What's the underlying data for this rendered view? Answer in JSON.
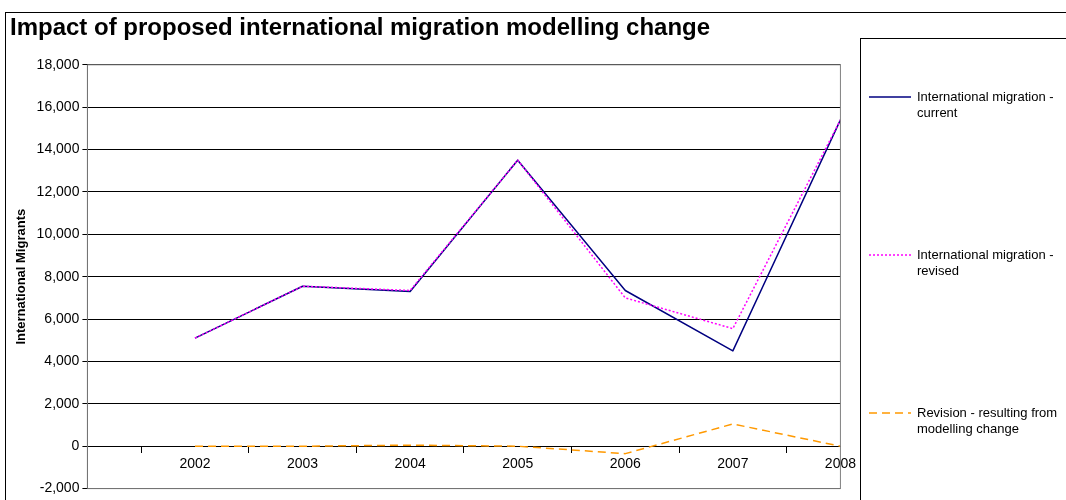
{
  "chart_data": {
    "type": "line",
    "title": "Impact of proposed international migration modelling change",
    "ylabel": "International Migrants",
    "categories": [
      null,
      "2002",
      "2003",
      "2004",
      "2005",
      "2006",
      "2007",
      "2008"
    ],
    "series": [
      {
        "name": "International migration - current",
        "color": "#000080",
        "line_style": "solid",
        "values": [
          null,
          5100,
          7550,
          7300,
          13500,
          7350,
          4500,
          15400
        ]
      },
      {
        "name": "International migration - revised",
        "color": "#ff00ff",
        "line_style": "dotted",
        "values": [
          null,
          5100,
          7550,
          7350,
          13500,
          7000,
          5550,
          15400
        ]
      },
      {
        "name": "Revision - resulting from modelling change",
        "color": "#ff9900",
        "line_style": "dashed",
        "values": [
          null,
          0,
          0,
          50,
          0,
          -350,
          1050,
          0
        ]
      }
    ],
    "ylim": [
      -2000,
      18000
    ],
    "yticks": [
      {
        "value": -2000,
        "label": "-2,000"
      },
      0,
      {
        "value": 2000,
        "label": "2,000"
      },
      {
        "value": 4000,
        "label": "4,000"
      },
      {
        "value": 6000,
        "label": "6,000"
      },
      {
        "value": 8000,
        "label": "8,000"
      },
      {
        "value": 10000,
        "label": "10,000"
      },
      {
        "value": 12000,
        "label": "12,000"
      },
      {
        "value": 14000,
        "label": "14,000"
      },
      {
        "value": 16000,
        "label": "16,000"
      },
      {
        "value": 18000,
        "label": "18,000"
      }
    ],
    "grid": "y",
    "legend": "right",
    "marker": "none"
  }
}
